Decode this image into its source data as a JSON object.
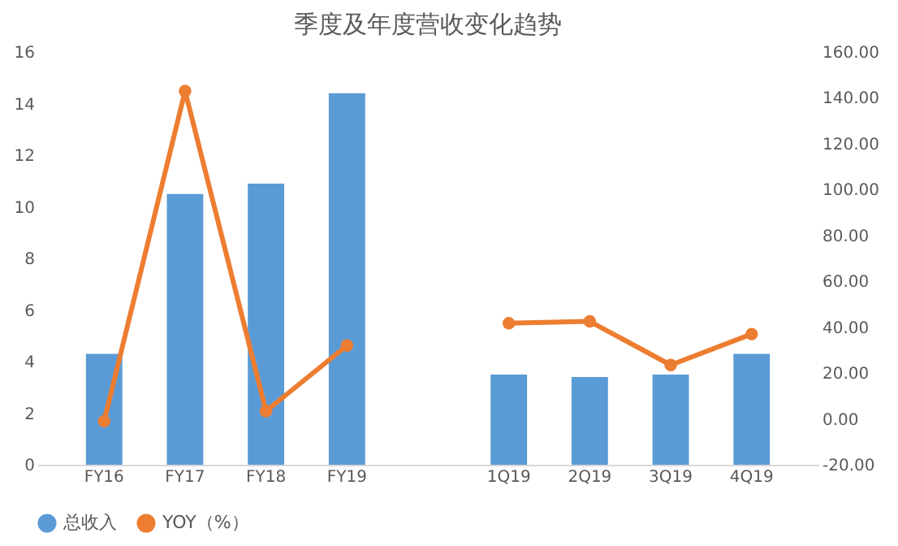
{
  "chart_data": {
    "type": "bar",
    "title": "季度及年度营收变化趋势",
    "categories": [
      "FY16",
      "FY17",
      "FY18",
      "FY19",
      null,
      "1Q19",
      "2Q19",
      "3Q19",
      "4Q19"
    ],
    "series": [
      {
        "name": "总收入",
        "color": "#5b9bd5",
        "values": [
          4.3,
          10.5,
          10.9,
          14.4,
          null,
          3.5,
          3.4,
          3.5,
          4.3
        ]
      },
      {
        "name": "YOY（%）",
        "type": "line",
        "axis": "y2",
        "color": "#ed7d31",
        "marker": "circle",
        "values": [
          -1,
          143,
          3.4,
          32,
          null,
          41.7,
          42.5,
          23.5,
          37
        ]
      }
    ],
    "ylim": [
      0,
      16
    ],
    "yticks": [
      0,
      2,
      4,
      6,
      8,
      10,
      12,
      14,
      16
    ],
    "y2lim": [
      -20,
      160
    ],
    "y2ticks": [
      {
        "value": -20,
        "label": "-20.00"
      },
      {
        "value": 0,
        "label": "0.00"
      },
      {
        "value": 20,
        "label": "20.00"
      },
      {
        "value": 40,
        "label": "40.00"
      },
      {
        "value": 60,
        "label": "60.00"
      },
      {
        "value": 80,
        "label": "80.00"
      },
      {
        "value": 100,
        "label": "100.00"
      },
      {
        "value": 120,
        "label": "120.00"
      },
      {
        "value": 140,
        "label": "140.00"
      },
      {
        "value": 160,
        "label": "160.00"
      }
    ],
    "legend": "bottom",
    "grid": false
  }
}
